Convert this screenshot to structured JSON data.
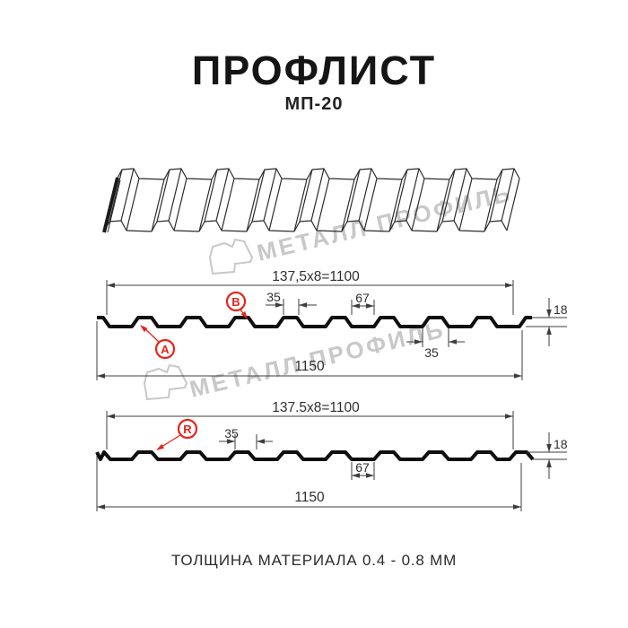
{
  "header": {
    "title": "ПРОФЛИСТ",
    "subtitle": "МП-20"
  },
  "watermark": {
    "text": "МЕТАЛЛ ПРОФИЛЬ"
  },
  "drawing1": {
    "width_formula": "137,5x8=1100",
    "rib_top": "35",
    "valley": "67",
    "rib_bottom": "35",
    "height": "18",
    "total_width": "1150",
    "label_a": "A",
    "label_b": "B"
  },
  "drawing2": {
    "width_formula": "137.5x8=1100",
    "rib_top": "35",
    "valley": "67",
    "height": "18",
    "total_width": "1150",
    "label_r": "R"
  },
  "footer": {
    "text": "ТОЛЩИНА МАТЕРИАЛА 0.4 - 0.8 ММ"
  },
  "colors": {
    "accent_red": "#e8241c",
    "watermark_gray": "#c8c8c8",
    "line_dark": "#0f0f0f"
  }
}
